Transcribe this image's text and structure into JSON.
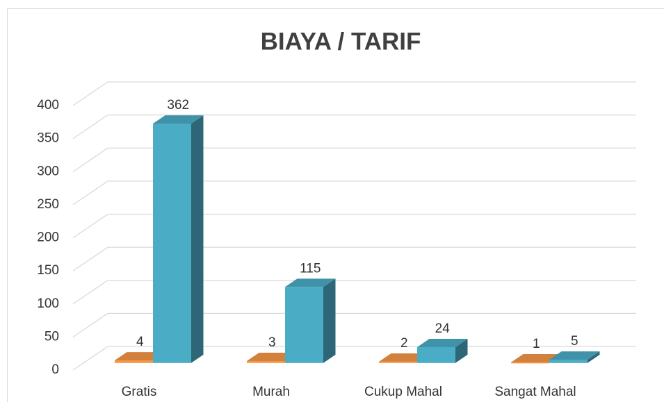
{
  "chart_data": {
    "type": "bar3d",
    "title": "BIAYA / TARIF",
    "categories": [
      "Gratis",
      "Murah",
      "Cukup Mahal",
      "Sangat Mahal"
    ],
    "series": [
      {
        "color": "#f79646",
        "values": [
          4,
          3,
          2,
          1
        ]
      },
      {
        "color": "#4bacc6",
        "values": [
          362,
          115,
          24,
          5
        ]
      }
    ],
    "ylim": [
      0,
      400
    ],
    "yticks": [
      0,
      50,
      100,
      150,
      200,
      250,
      300,
      350,
      400
    ],
    "grid": true
  }
}
